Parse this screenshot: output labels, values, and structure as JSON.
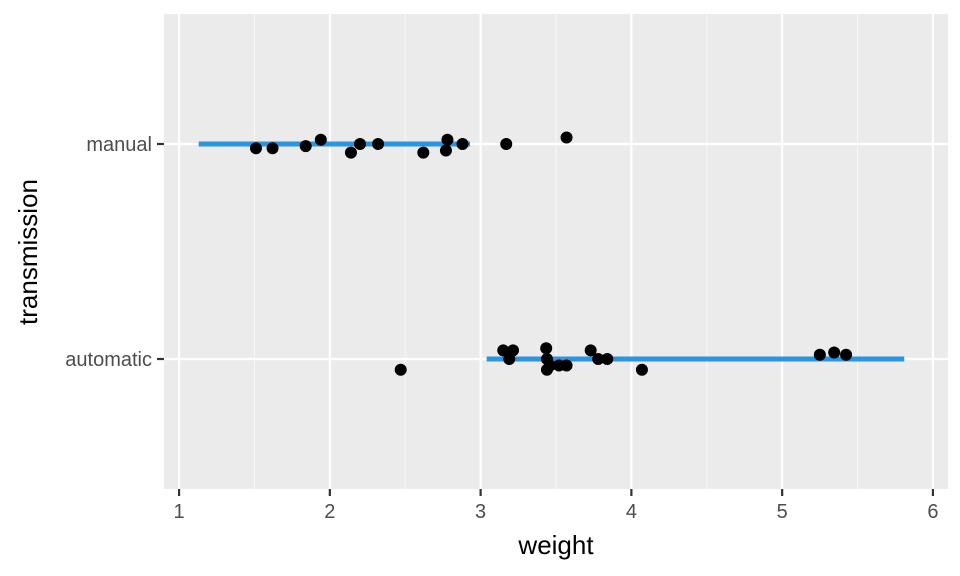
{
  "chart_data": {
    "type": "scatter",
    "title": "",
    "xlabel": "weight",
    "ylabel": "transmission",
    "xlim": [
      0.9,
      6.1
    ],
    "x_ticks": [
      1,
      2,
      3,
      4,
      5,
      6
    ],
    "categories": [
      "manual",
      "automatic"
    ],
    "grid": true,
    "legend": "none",
    "colors": {
      "panel": "#ebebeb",
      "grid_major": "#ffffff",
      "grid_minor": "#f7f7f7",
      "points": "#000000",
      "range_line": "#2b95e2",
      "tick_text": "#4d4d4d",
      "axis_title": "#000000"
    },
    "range_lines": [
      {
        "category": "manual",
        "x_start": 1.13,
        "x_end": 2.93
      },
      {
        "category": "automatic",
        "x_start": 3.04,
        "x_end": 5.81
      }
    ],
    "points": [
      {
        "x": 1.51,
        "y": "manual",
        "jitter": -0.02
      },
      {
        "x": 1.62,
        "y": "manual",
        "jitter": -0.02
      },
      {
        "x": 1.84,
        "y": "manual",
        "jitter": -0.01
      },
      {
        "x": 1.94,
        "y": "manual",
        "jitter": 0.02
      },
      {
        "x": 2.14,
        "y": "manual",
        "jitter": -0.04
      },
      {
        "x": 2.2,
        "y": "manual",
        "jitter": 0.0
      },
      {
        "x": 2.32,
        "y": "manual",
        "jitter": 0.0
      },
      {
        "x": 2.62,
        "y": "manual",
        "jitter": -0.04
      },
      {
        "x": 2.77,
        "y": "manual",
        "jitter": -0.03
      },
      {
        "x": 2.78,
        "y": "manual",
        "jitter": 0.02
      },
      {
        "x": 2.88,
        "y": "manual",
        "jitter": 0.0
      },
      {
        "x": 3.17,
        "y": "manual",
        "jitter": 0.0
      },
      {
        "x": 3.57,
        "y": "manual",
        "jitter": 0.03
      },
      {
        "x": 2.47,
        "y": "automatic",
        "jitter": -0.05
      },
      {
        "x": 3.15,
        "y": "automatic",
        "jitter": 0.04
      },
      {
        "x": 3.19,
        "y": "automatic",
        "jitter": 0.0
      },
      {
        "x": 3.215,
        "y": "automatic",
        "jitter": 0.04
      },
      {
        "x": 3.435,
        "y": "automatic",
        "jitter": 0.05
      },
      {
        "x": 3.44,
        "y": "automatic",
        "jitter": 0.0
      },
      {
        "x": 3.44,
        "y": "automatic",
        "jitter": -0.05
      },
      {
        "x": 3.46,
        "y": "automatic",
        "jitter": -0.03
      },
      {
        "x": 3.52,
        "y": "automatic",
        "jitter": -0.03
      },
      {
        "x": 3.57,
        "y": "automatic",
        "jitter": -0.03
      },
      {
        "x": 3.73,
        "y": "automatic",
        "jitter": 0.04
      },
      {
        "x": 3.78,
        "y": "automatic",
        "jitter": 0.0
      },
      {
        "x": 3.84,
        "y": "automatic",
        "jitter": 0.0
      },
      {
        "x": 4.07,
        "y": "automatic",
        "jitter": -0.05
      },
      {
        "x": 5.25,
        "y": "automatic",
        "jitter": 0.02
      },
      {
        "x": 5.345,
        "y": "automatic",
        "jitter": 0.03
      },
      {
        "x": 5.424,
        "y": "automatic",
        "jitter": 0.02
      }
    ]
  }
}
